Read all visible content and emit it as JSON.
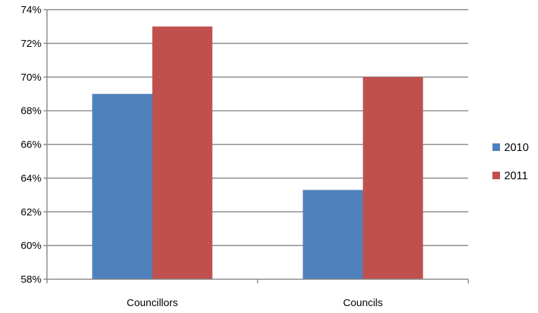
{
  "chart_data": {
    "type": "bar",
    "categories": [
      "Councillors",
      "Councils"
    ],
    "series": [
      {
        "name": "2010",
        "values": [
          69.0,
          63.3
        ],
        "color": "#4F81BD"
      },
      {
        "name": "2011",
        "values": [
          73.0,
          70.0
        ],
        "color": "#C0504D"
      }
    ],
    "ylim": [
      58,
      74
    ],
    "yticks": [
      "58%",
      "60%",
      "62%",
      "64%",
      "66%",
      "68%",
      "70%",
      "72%",
      "74%"
    ],
    "ytick_values": [
      58,
      60,
      62,
      64,
      66,
      68,
      70,
      72,
      74
    ],
    "grid": true,
    "legend_position": "right",
    "title": "",
    "xlabel": "",
    "ylabel": ""
  }
}
